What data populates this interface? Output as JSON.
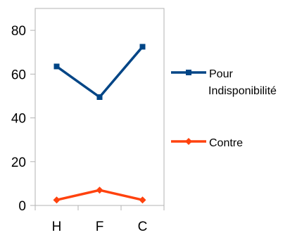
{
  "chart_data": {
    "type": "line",
    "title": "",
    "xlabel": "",
    "ylabel": "",
    "categories": [
      "H",
      "F",
      "C"
    ],
    "ylim": [
      0,
      90
    ],
    "yticks": [
      0,
      20,
      40,
      60,
      80
    ],
    "grid": false,
    "legend_position": "right",
    "series": [
      {
        "name": "Pour Indisponibilité",
        "name_lines": [
          "Pour",
          "Indisponibilité"
        ],
        "values": [
          63.5,
          49.5,
          72.5
        ],
        "color": "#004586",
        "marker": "square"
      },
      {
        "name": "Contre",
        "name_lines": [
          "Contre"
        ],
        "values": [
          2.5,
          7,
          2.5
        ],
        "color": "#ff420e",
        "marker": "diamond"
      }
    ]
  }
}
